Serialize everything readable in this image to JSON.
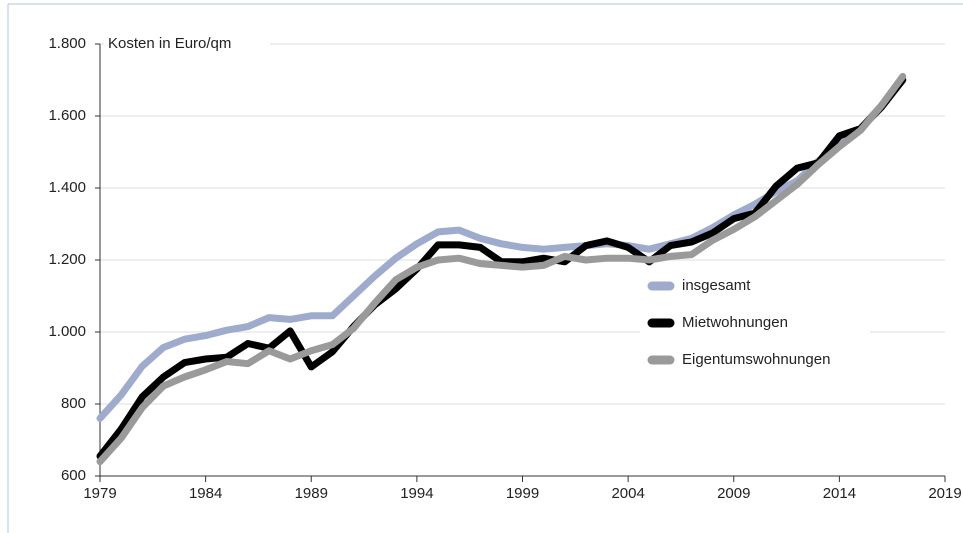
{
  "chart_data": {
    "type": "line",
    "y_label": "Kosten in Euro/qm",
    "x": [
      1979,
      1980,
      1981,
      1982,
      1983,
      1984,
      1985,
      1986,
      1987,
      1988,
      1989,
      1990,
      1991,
      1992,
      1993,
      1994,
      1995,
      1996,
      1997,
      1998,
      1999,
      2000,
      2001,
      2002,
      2003,
      2004,
      2005,
      2006,
      2007,
      2008,
      2009,
      2010,
      2011,
      2012,
      2013,
      2014,
      2015,
      2016,
      2017
    ],
    "series": [
      {
        "name": "insgesamt",
        "color": "#9eabcd",
        "values": [
          760,
          825,
          905,
          957,
          980,
          990,
          1005,
          1015,
          1040,
          1035,
          1045,
          1045,
          1100,
          1155,
          1205,
          1245,
          1278,
          1283,
          1260,
          1245,
          1235,
          1230,
          1235,
          1240,
          1245,
          1240,
          1230,
          1245,
          1260,
          1290,
          1325,
          1355,
          1390,
          1420,
          1475,
          1520,
          1565,
          1630,
          1700
        ]
      },
      {
        "name": "Mietwohnungen",
        "color": "#000000",
        "values": [
          655,
          730,
          820,
          875,
          915,
          925,
          930,
          968,
          955,
          1003,
          903,
          945,
          1015,
          1075,
          1120,
          1175,
          1242,
          1242,
          1235,
          1195,
          1195,
          1205,
          1195,
          1240,
          1253,
          1235,
          1195,
          1240,
          1250,
          1275,
          1315,
          1330,
          1405,
          1455,
          1470,
          1545,
          1565,
          1625,
          1700
        ]
      },
      {
        "name": "Eigentumswohnungen",
        "color": "#9a9a9a",
        "values": [
          640,
          705,
          790,
          850,
          875,
          895,
          918,
          912,
          948,
          925,
          948,
          965,
          1010,
          1080,
          1145,
          1180,
          1200,
          1205,
          1190,
          1185,
          1180,
          1185,
          1210,
          1200,
          1205,
          1205,
          1200,
          1210,
          1215,
          1255,
          1285,
          1320,
          1365,
          1410,
          1465,
          1515,
          1560,
          1630,
          1710
        ]
      }
    ],
    "xlim": [
      1979,
      2019
    ],
    "xticks": [
      1979,
      1984,
      1989,
      1994,
      1999,
      2004,
      2009,
      2014,
      2019
    ],
    "ylim": [
      600,
      1800
    ],
    "yticks": [
      600,
      800,
      {
        "value": 1000,
        "label": "1.000"
      },
      {
        "value": 1200,
        "label": "1.200"
      },
      {
        "value": 1400,
        "label": "1.400"
      },
      {
        "value": 1600,
        "label": "1.600"
      },
      {
        "value": 1800,
        "label": "1.800"
      }
    ],
    "grid": true,
    "legend": "center-right"
  }
}
